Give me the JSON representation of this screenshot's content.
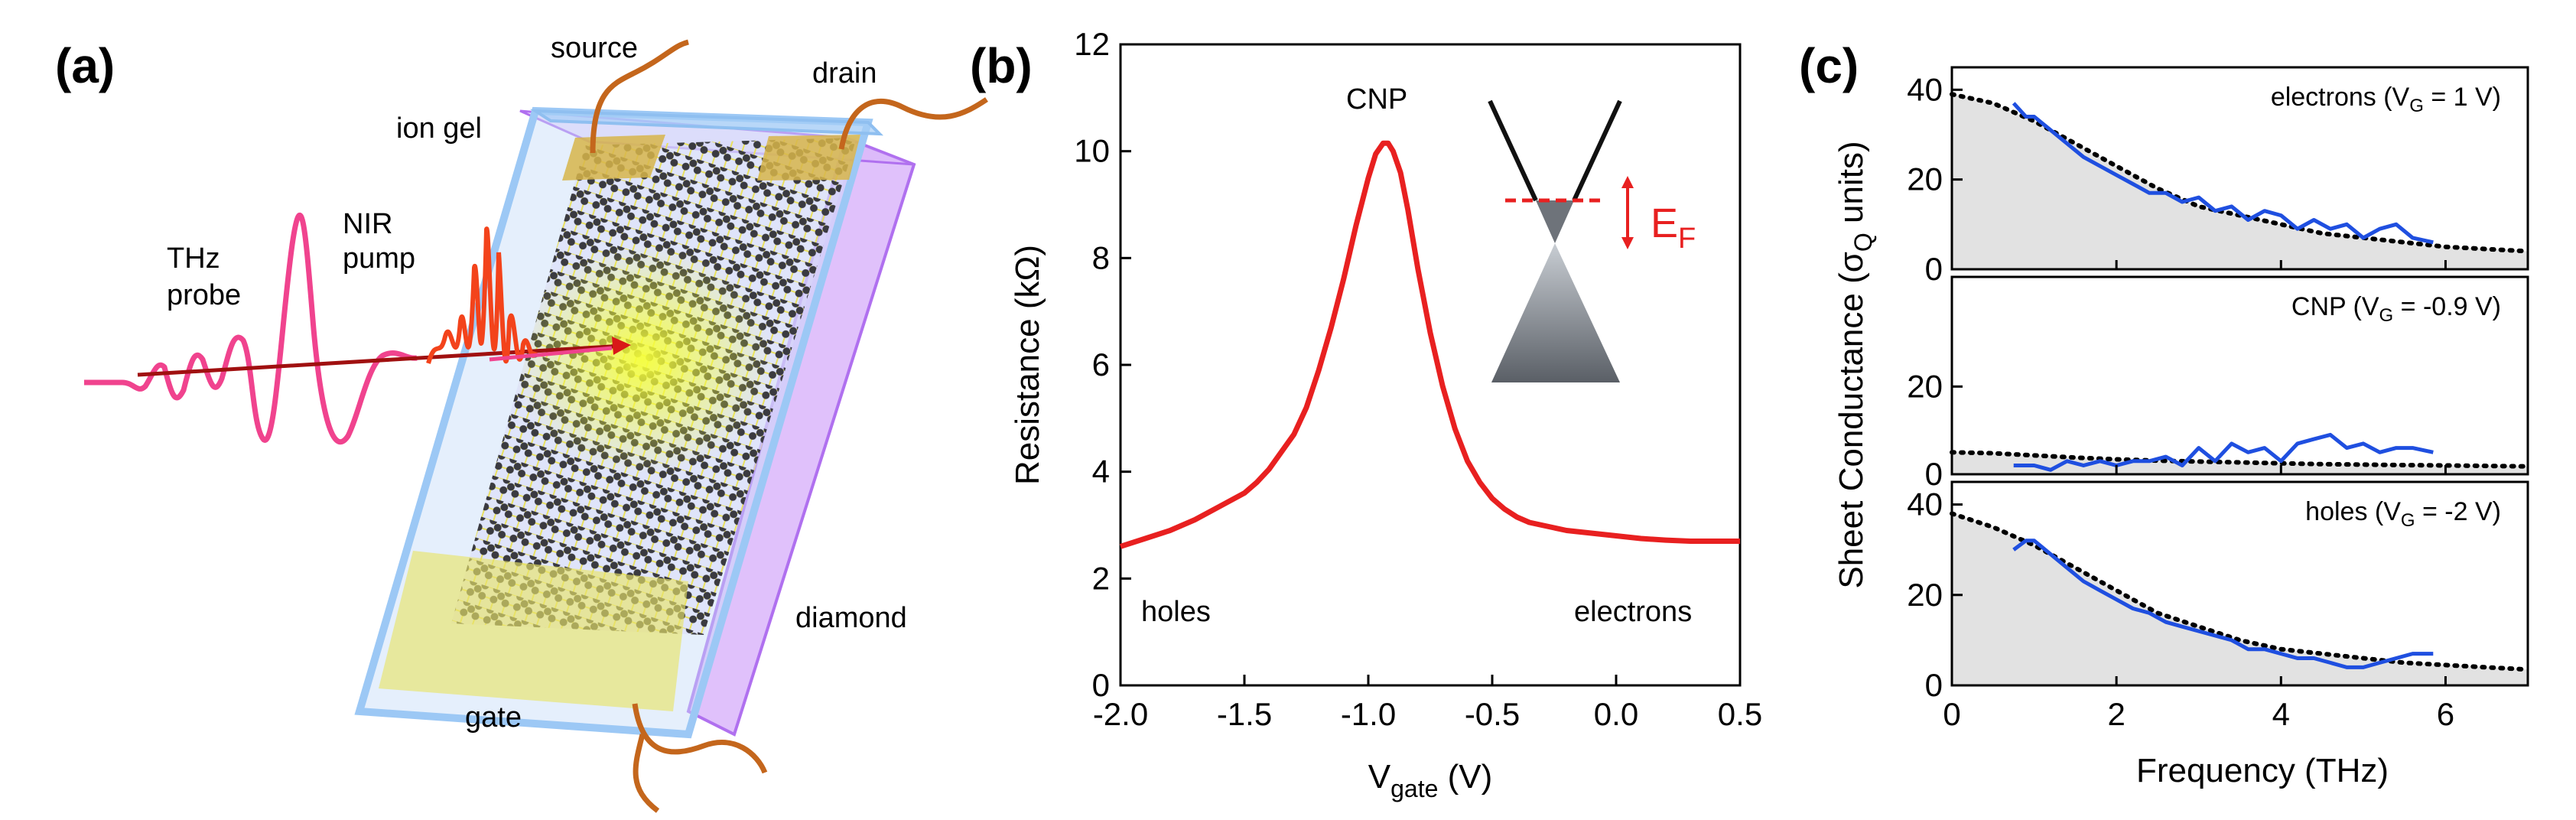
{
  "panels": {
    "a": {
      "label": "(a)",
      "annotations": {
        "source": "source",
        "drain": "drain",
        "ion_gel": "ion gel",
        "nir_pump_line1": "NIR",
        "nir_pump_line2": "pump",
        "thz_probe_line1": "THz",
        "thz_probe_line2": "probe",
        "diamond": "diamond",
        "gate": "gate"
      }
    },
    "b": {
      "label": "(b)",
      "annotations": {
        "cnp": "CNP",
        "holes": "holes",
        "electrons": "electrons",
        "ef_main": "E",
        "ef_sub": "F"
      },
      "xlabel_main": "V",
      "xlabel_sub": "gate",
      "xlabel_unit": " (V)",
      "ylabel": "Resistance (kΩ)"
    },
    "c": {
      "label": "(c)",
      "ylabel_a": "Sheet Conductance (σ",
      "ylabel_sub": "Q",
      "ylabel_b": " units)",
      "xlabel": "Frequency (THz)",
      "subplots": [
        {
          "pre": "electrons (V",
          "sub": "G",
          "post": " = 1 V)"
        },
        {
          "pre": "CNP (V",
          "sub": "G",
          "post": " = -0.9 V)"
        },
        {
          "pre": "holes (V",
          "sub": "G",
          "post": " = -2 V)"
        }
      ]
    }
  },
  "chart_data": [
    {
      "type": "line",
      "title": "",
      "xlabel": "V_gate (V)",
      "ylabel": "Resistance (kΩ)",
      "xlim": [
        -2.0,
        0.5
      ],
      "ylim": [
        0,
        12
      ],
      "xticks": [
        "-2.0",
        "-1.5",
        "-1.0",
        "-0.5",
        "0.0",
        "0.5"
      ],
      "yticks": [
        "0",
        "2",
        "4",
        "6",
        "8",
        "10",
        "12"
      ],
      "series": [
        {
          "name": "resistance",
          "color": "#e82020",
          "x": [
            -2.0,
            -1.9,
            -1.8,
            -1.7,
            -1.6,
            -1.5,
            -1.45,
            -1.4,
            -1.3,
            -1.25,
            -1.2,
            -1.15,
            -1.1,
            -1.05,
            -1.0,
            -0.97,
            -0.94,
            -0.92,
            -0.9,
            -0.87,
            -0.84,
            -0.8,
            -0.75,
            -0.7,
            -0.65,
            -0.6,
            -0.55,
            -0.5,
            -0.45,
            -0.4,
            -0.35,
            -0.3,
            -0.25,
            -0.2,
            -0.1,
            0.0,
            0.1,
            0.2,
            0.3,
            0.4,
            0.5
          ],
          "values": [
            2.6,
            2.75,
            2.9,
            3.1,
            3.35,
            3.6,
            3.8,
            4.05,
            4.7,
            5.2,
            5.9,
            6.7,
            7.6,
            8.6,
            9.5,
            9.95,
            10.15,
            10.15,
            10.0,
            9.6,
            8.9,
            7.8,
            6.6,
            5.6,
            4.8,
            4.2,
            3.8,
            3.5,
            3.3,
            3.15,
            3.05,
            3.0,
            2.95,
            2.9,
            2.85,
            2.8,
            2.75,
            2.72,
            2.7,
            2.7,
            2.7
          ]
        }
      ],
      "inset": {
        "type": "dirac-cone",
        "fermi_level": "E_F"
      }
    },
    {
      "type": "line",
      "title": "electrons (V_G = 1 V)",
      "xlabel": "Frequency (THz)",
      "ylabel": "Sheet Conductance (σ_Q units)",
      "xlim": [
        0,
        7
      ],
      "ylim": [
        0,
        45
      ],
      "yticks": [
        "0",
        "20",
        "40"
      ],
      "series": [
        {
          "name": "fit",
          "style": "dotted",
          "filled": true,
          "color": "#000000",
          "x": [
            0,
            0.5,
            1,
            1.5,
            2,
            2.5,
            3,
            3.5,
            4,
            4.5,
            5,
            5.5,
            6,
            6.5,
            7
          ],
          "values": [
            39,
            37,
            33,
            28,
            23,
            18,
            14,
            12,
            10,
            8,
            7,
            6,
            5,
            4.5,
            4
          ]
        },
        {
          "name": "data",
          "style": "solid",
          "color": "#1f4fe0",
          "x": [
            0.75,
            0.9,
            1.0,
            1.2,
            1.4,
            1.6,
            1.8,
            2.0,
            2.2,
            2.4,
            2.6,
            2.8,
            3.0,
            3.2,
            3.4,
            3.6,
            3.8,
            4.0,
            4.2,
            4.4,
            4.6,
            4.8,
            5.0,
            5.2,
            5.4,
            5.6,
            5.85
          ],
          "values": [
            37,
            34,
            34,
            31,
            28,
            25,
            23,
            21,
            19,
            17,
            17,
            15,
            16,
            13,
            14,
            11,
            13,
            12,
            9,
            11,
            9,
            10,
            7,
            9,
            10,
            7,
            6
          ]
        }
      ]
    },
    {
      "type": "line",
      "title": "CNP (V_G = -0.9 V)",
      "xlabel": "Frequency (THz)",
      "ylabel": "Sheet Conductance (σ_Q units)",
      "xlim": [
        0,
        7
      ],
      "ylim": [
        0,
        45
      ],
      "yticks": [
        "0",
        "20"
      ],
      "series": [
        {
          "name": "fit",
          "style": "dotted",
          "filled": true,
          "color": "#000000",
          "x": [
            0,
            0.5,
            1,
            1.5,
            2,
            2.5,
            3,
            3.5,
            4,
            4.5,
            5,
            5.5,
            6,
            6.5,
            7
          ],
          "values": [
            5,
            4.8,
            4.3,
            3.8,
            3.4,
            3.1,
            2.9,
            2.7,
            2.5,
            2.3,
            2.2,
            2.1,
            2.0,
            1.9,
            1.8
          ]
        },
        {
          "name": "data",
          "style": "solid",
          "color": "#1f4fe0",
          "x": [
            0.75,
            1.0,
            1.2,
            1.4,
            1.6,
            1.8,
            2.0,
            2.2,
            2.4,
            2.6,
            2.8,
            3.0,
            3.2,
            3.4,
            3.6,
            3.8,
            4.0,
            4.2,
            4.4,
            4.6,
            4.8,
            5.0,
            5.2,
            5.4,
            5.6,
            5.85
          ],
          "values": [
            2,
            2,
            1,
            3,
            2,
            3,
            2,
            3,
            3,
            4,
            2,
            6,
            3,
            7,
            5,
            6,
            3,
            7,
            8,
            9,
            6,
            7,
            5,
            6,
            6,
            5
          ]
        }
      ]
    },
    {
      "type": "line",
      "title": "holes (V_G = -2 V)",
      "xlabel": "Frequency (THz)",
      "ylabel": "Sheet Conductance (σ_Q units)",
      "xlim": [
        0,
        7
      ],
      "ylim": [
        0,
        45
      ],
      "xticks": [
        "0",
        "2",
        "4",
        "6"
      ],
      "yticks": [
        "0",
        "20",
        "40"
      ],
      "series": [
        {
          "name": "fit",
          "style": "dotted",
          "filled": true,
          "color": "#000000",
          "x": [
            0,
            0.5,
            1,
            1.5,
            2,
            2.5,
            3,
            3.5,
            4,
            4.5,
            5,
            5.5,
            6,
            6.5,
            7
          ],
          "values": [
            38,
            35,
            31,
            26,
            21,
            16,
            13,
            10,
            8,
            7,
            6,
            5,
            4.5,
            4,
            3.5
          ]
        },
        {
          "name": "data",
          "style": "solid",
          "color": "#1f4fe0",
          "x": [
            0.75,
            0.9,
            1.0,
            1.2,
            1.4,
            1.6,
            1.8,
            2.0,
            2.2,
            2.4,
            2.6,
            2.8,
            3.0,
            3.2,
            3.4,
            3.6,
            3.8,
            4.0,
            4.2,
            4.4,
            4.6,
            4.8,
            5.0,
            5.2,
            5.4,
            5.6,
            5.85
          ],
          "values": [
            30,
            32,
            32,
            29,
            26,
            23,
            21,
            19,
            17,
            16,
            14,
            13,
            12,
            11,
            10,
            8,
            8,
            7,
            6,
            6,
            5,
            4,
            4,
            5,
            6,
            7,
            7
          ]
        }
      ]
    }
  ]
}
